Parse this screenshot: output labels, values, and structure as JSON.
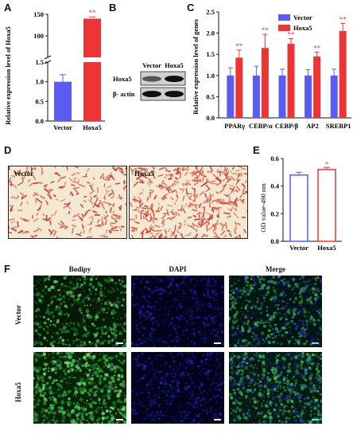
{
  "panels": {
    "A": "A",
    "B": "B",
    "C": "C",
    "D": "D",
    "E": "E",
    "F": "F"
  },
  "colors": {
    "vector": "#5a5cf0",
    "hoxa5": "#ee3535",
    "significance": "#ee3535"
  },
  "panel_a": {
    "chart_data": {
      "type": "bar",
      "categories": [
        "Vector",
        "Hoxa5"
      ],
      "values": [
        1.0,
        140
      ],
      "errors": [
        0.18,
        4
      ],
      "significance": [
        "",
        "**"
      ],
      "ylabel": "Relative expression level of Hoxa5",
      "y_ticks_lower": [
        "0.0",
        "0.5",
        "1.0",
        "1.5"
      ],
      "y_ticks_upper": [
        "100",
        "150"
      ],
      "axis_break": true
    }
  },
  "panel_b": {
    "columns": [
      "Vector",
      "Hoxa5"
    ],
    "rows": [
      "Hoxa5",
      "β- actin"
    ]
  },
  "panel_c": {
    "chart_data": {
      "type": "bar",
      "categories": [
        "PPARγ",
        "CEBP/α",
        "CEBP/β",
        "AP2",
        "SREBP1"
      ],
      "series": [
        {
          "name": "Vector",
          "values": [
            1.0,
            1.0,
            1.0,
            1.0,
            1.0
          ],
          "errors": [
            0.18,
            0.22,
            0.15,
            0.14,
            0.15
          ]
        },
        {
          "name": "Hoxa5",
          "values": [
            1.42,
            1.65,
            1.75,
            1.45,
            2.05
          ],
          "errors": [
            0.18,
            0.32,
            0.12,
            0.1,
            0.18
          ]
        }
      ],
      "significance": [
        "**",
        "**",
        "**",
        "**",
        "**"
      ],
      "ylabel": "Relative expression level of genes",
      "y_ticks": [
        "0.0",
        "0.5",
        "1.0",
        "1.5",
        "2.0",
        "2.5"
      ],
      "ylim": [
        0,
        2.5
      ],
      "legend_position": "top-right"
    }
  },
  "panel_d": {
    "images": [
      "Vector",
      "Hoxa5"
    ]
  },
  "panel_e": {
    "chart_data": {
      "type": "bar",
      "categories": [
        "Vector",
        "Hoxa5"
      ],
      "values": [
        0.48,
        0.52
      ],
      "errors": [
        0.02,
        0.015
      ],
      "significance": [
        "",
        "*"
      ],
      "ylabel": "OD value-490 nm",
      "y_ticks": [
        "0.0",
        "0.2",
        "0.4",
        "0.6"
      ],
      "ylim": [
        0,
        0.6
      ]
    }
  },
  "panel_f": {
    "columns": [
      "Bodipy",
      "DAPI",
      "Merge"
    ],
    "rows": [
      "Vector",
      "Hoxa5"
    ]
  }
}
